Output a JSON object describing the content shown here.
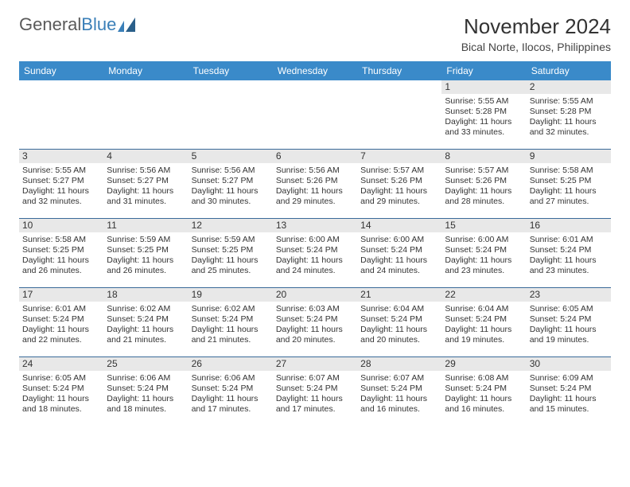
{
  "logo": {
    "part1": "General",
    "part2": "Blue"
  },
  "title": "November 2024",
  "location": "Bical Norte, Ilocos, Philippines",
  "colors": {
    "header_bg": "#3a8ac9",
    "header_text": "#ffffff",
    "daynum_bg": "#e8e8e8",
    "border": "#3a6a99",
    "text": "#333333",
    "logo_gray": "#5a5a5a",
    "logo_blue": "#3a7fb8"
  },
  "layout": {
    "columns": 7,
    "rows": 5,
    "first_day_index": 5,
    "days_in_month": 30
  },
  "weekdays": [
    "Sunday",
    "Monday",
    "Tuesday",
    "Wednesday",
    "Thursday",
    "Friday",
    "Saturday"
  ],
  "days": [
    {
      "n": 1,
      "sr": "5:55 AM",
      "ss": "5:28 PM",
      "dl": "11 hours and 33 minutes."
    },
    {
      "n": 2,
      "sr": "5:55 AM",
      "ss": "5:28 PM",
      "dl": "11 hours and 32 minutes."
    },
    {
      "n": 3,
      "sr": "5:55 AM",
      "ss": "5:27 PM",
      "dl": "11 hours and 32 minutes."
    },
    {
      "n": 4,
      "sr": "5:56 AM",
      "ss": "5:27 PM",
      "dl": "11 hours and 31 minutes."
    },
    {
      "n": 5,
      "sr": "5:56 AM",
      "ss": "5:27 PM",
      "dl": "11 hours and 30 minutes."
    },
    {
      "n": 6,
      "sr": "5:56 AM",
      "ss": "5:26 PM",
      "dl": "11 hours and 29 minutes."
    },
    {
      "n": 7,
      "sr": "5:57 AM",
      "ss": "5:26 PM",
      "dl": "11 hours and 29 minutes."
    },
    {
      "n": 8,
      "sr": "5:57 AM",
      "ss": "5:26 PM",
      "dl": "11 hours and 28 minutes."
    },
    {
      "n": 9,
      "sr": "5:58 AM",
      "ss": "5:25 PM",
      "dl": "11 hours and 27 minutes."
    },
    {
      "n": 10,
      "sr": "5:58 AM",
      "ss": "5:25 PM",
      "dl": "11 hours and 26 minutes."
    },
    {
      "n": 11,
      "sr": "5:59 AM",
      "ss": "5:25 PM",
      "dl": "11 hours and 26 minutes."
    },
    {
      "n": 12,
      "sr": "5:59 AM",
      "ss": "5:25 PM",
      "dl": "11 hours and 25 minutes."
    },
    {
      "n": 13,
      "sr": "6:00 AM",
      "ss": "5:24 PM",
      "dl": "11 hours and 24 minutes."
    },
    {
      "n": 14,
      "sr": "6:00 AM",
      "ss": "5:24 PM",
      "dl": "11 hours and 24 minutes."
    },
    {
      "n": 15,
      "sr": "6:00 AM",
      "ss": "5:24 PM",
      "dl": "11 hours and 23 minutes."
    },
    {
      "n": 16,
      "sr": "6:01 AM",
      "ss": "5:24 PM",
      "dl": "11 hours and 23 minutes."
    },
    {
      "n": 17,
      "sr": "6:01 AM",
      "ss": "5:24 PM",
      "dl": "11 hours and 22 minutes."
    },
    {
      "n": 18,
      "sr": "6:02 AM",
      "ss": "5:24 PM",
      "dl": "11 hours and 21 minutes."
    },
    {
      "n": 19,
      "sr": "6:02 AM",
      "ss": "5:24 PM",
      "dl": "11 hours and 21 minutes."
    },
    {
      "n": 20,
      "sr": "6:03 AM",
      "ss": "5:24 PM",
      "dl": "11 hours and 20 minutes."
    },
    {
      "n": 21,
      "sr": "6:04 AM",
      "ss": "5:24 PM",
      "dl": "11 hours and 20 minutes."
    },
    {
      "n": 22,
      "sr": "6:04 AM",
      "ss": "5:24 PM",
      "dl": "11 hours and 19 minutes."
    },
    {
      "n": 23,
      "sr": "6:05 AM",
      "ss": "5:24 PM",
      "dl": "11 hours and 19 minutes."
    },
    {
      "n": 24,
      "sr": "6:05 AM",
      "ss": "5:24 PM",
      "dl": "11 hours and 18 minutes."
    },
    {
      "n": 25,
      "sr": "6:06 AM",
      "ss": "5:24 PM",
      "dl": "11 hours and 18 minutes."
    },
    {
      "n": 26,
      "sr": "6:06 AM",
      "ss": "5:24 PM",
      "dl": "11 hours and 17 minutes."
    },
    {
      "n": 27,
      "sr": "6:07 AM",
      "ss": "5:24 PM",
      "dl": "11 hours and 17 minutes."
    },
    {
      "n": 28,
      "sr": "6:07 AM",
      "ss": "5:24 PM",
      "dl": "11 hours and 16 minutes."
    },
    {
      "n": 29,
      "sr": "6:08 AM",
      "ss": "5:24 PM",
      "dl": "11 hours and 16 minutes."
    },
    {
      "n": 30,
      "sr": "6:09 AM",
      "ss": "5:24 PM",
      "dl": "11 hours and 15 minutes."
    }
  ],
  "labels": {
    "sunrise": "Sunrise:",
    "sunset": "Sunset:",
    "daylight": "Daylight:"
  }
}
